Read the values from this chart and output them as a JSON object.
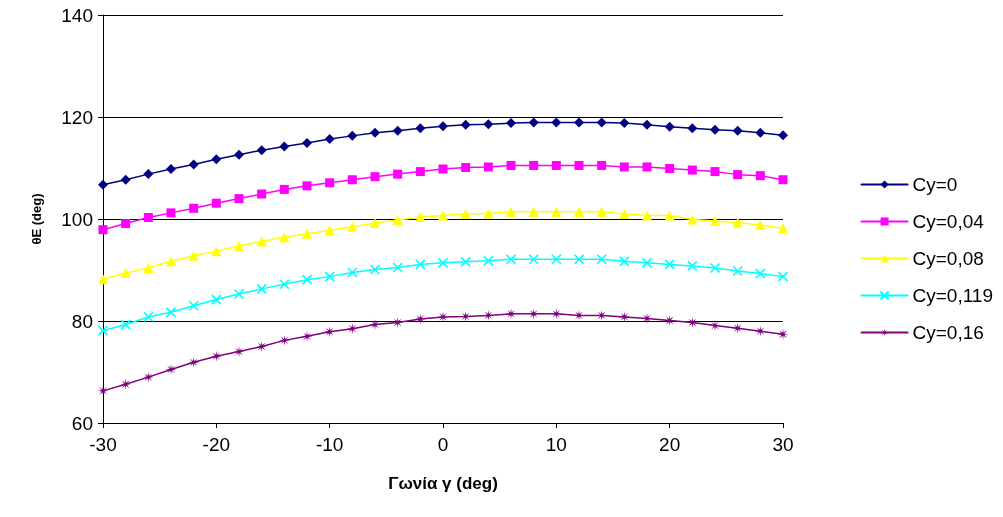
{
  "chart_data": {
    "type": "line",
    "xlabel": "Γωνία γ (deg)",
    "ylabel": "θE (deg)",
    "x": [
      -30,
      -28,
      -26,
      -24,
      -22,
      -20,
      -18,
      -16,
      -14,
      -12,
      -10,
      -8,
      -6,
      -4,
      -2,
      0,
      2,
      4,
      6,
      8,
      10,
      12,
      14,
      16,
      18,
      20,
      22,
      24,
      26,
      28,
      30
    ],
    "xlim": [
      -30,
      30
    ],
    "xticks": [
      -30,
      -20,
      -10,
      0,
      10,
      20,
      30
    ],
    "ylim": [
      60,
      140
    ],
    "yticks": [
      60,
      80,
      100,
      120,
      140
    ],
    "grid": "y",
    "legend": "right",
    "line_style": "solid",
    "series": [
      {
        "name": "Cy=0",
        "color": "#000080",
        "marker": "diamond",
        "values": [
          106.7,
          107.7,
          108.8,
          109.8,
          110.7,
          111.7,
          112.6,
          113.5,
          114.2,
          114.9,
          115.7,
          116.3,
          116.9,
          117.3,
          117.8,
          118.2,
          118.5,
          118.6,
          118.8,
          118.9,
          118.9,
          118.9,
          118.9,
          118.8,
          118.5,
          118.1,
          117.8,
          117.5,
          117.3,
          116.9,
          116.4
        ]
      },
      {
        "name": "Cy=0,04",
        "color": "#ff00ff",
        "marker": "square",
        "values": [
          97.9,
          99.1,
          100.3,
          101.2,
          102.1,
          103.1,
          104.0,
          104.9,
          105.8,
          106.5,
          107.1,
          107.7,
          108.3,
          108.8,
          109.3,
          109.8,
          110.1,
          110.2,
          110.5,
          110.5,
          110.5,
          110.5,
          110.5,
          110.2,
          110.2,
          109.9,
          109.6,
          109.3,
          108.7,
          108.5,
          107.7
        ]
      },
      {
        "name": "Cy=0,08",
        "color": "#ffff00",
        "marker": "triangle",
        "values": [
          88.2,
          89.4,
          90.4,
          91.7,
          92.8,
          93.7,
          94.7,
          95.6,
          96.4,
          97.1,
          97.8,
          98.5,
          99.2,
          99.8,
          100.4,
          100.7,
          101.0,
          101.1,
          101.4,
          101.4,
          101.4,
          101.4,
          101.4,
          101.0,
          100.7,
          100.7,
          99.9,
          99.6,
          99.3,
          98.8,
          98.2
        ]
      },
      {
        "name": "Cy=0,119",
        "color": "#00ffff",
        "marker": "cross",
        "values": [
          78.1,
          79.3,
          80.8,
          81.7,
          83.0,
          84.2,
          85.3,
          86.3,
          87.2,
          88.1,
          88.7,
          89.5,
          90.1,
          90.5,
          91.1,
          91.4,
          91.6,
          91.8,
          92.1,
          92.1,
          92.1,
          92.1,
          92.1,
          91.7,
          91.4,
          91.1,
          90.8,
          90.4,
          89.8,
          89.3,
          88.7
        ]
      },
      {
        "name": "Cy=0,16",
        "color": "#800080",
        "marker": "star",
        "values": [
          66.3,
          67.6,
          69.0,
          70.5,
          71.9,
          73.1,
          74.0,
          75.0,
          76.2,
          77.0,
          77.9,
          78.5,
          79.3,
          79.7,
          80.4,
          80.8,
          80.9,
          81.1,
          81.4,
          81.4,
          81.4,
          81.1,
          81.1,
          80.8,
          80.5,
          80.1,
          79.7,
          79.1,
          78.6,
          78.0,
          77.4
        ]
      }
    ]
  }
}
